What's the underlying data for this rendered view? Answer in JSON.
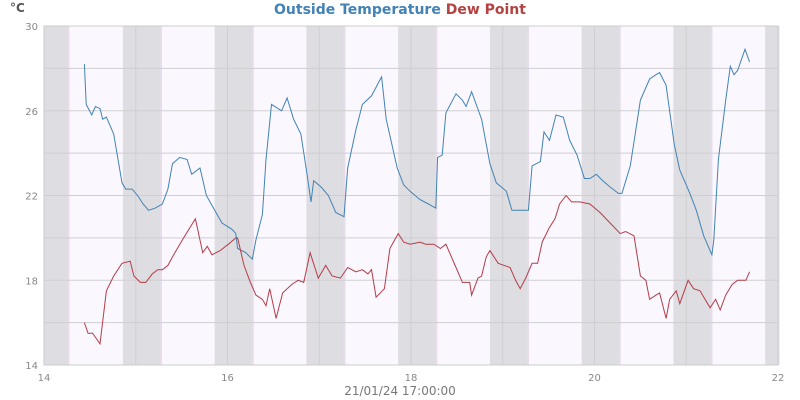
{
  "chart_data": {
    "type": "line",
    "title": "Outside Temperature Dew Point",
    "title_parts": [
      "Outside Temperature",
      "Dew Point"
    ],
    "ylabel": "°C",
    "xlabel": "21/01/24 17:00:00",
    "xlim": [
      14,
      22
    ],
    "ylim": [
      14,
      30
    ],
    "xticks": [
      14,
      16,
      18,
      20,
      22
    ],
    "yticks": [
      14,
      18,
      22,
      26,
      30
    ],
    "ygrid": [
      14,
      16,
      18,
      20,
      22,
      24,
      26,
      28,
      30
    ],
    "xgrid": [
      15,
      16,
      17,
      18,
      19,
      20,
      21
    ],
    "grid": true,
    "night_bands": [
      [
        14.0,
        14.26
      ],
      [
        14.86,
        15.27
      ],
      [
        15.86,
        16.27
      ],
      [
        16.86,
        17.27
      ],
      [
        17.86,
        18.27
      ],
      [
        18.86,
        19.27
      ],
      [
        19.86,
        20.27
      ],
      [
        20.86,
        21.27
      ],
      [
        21.86,
        22.0
      ]
    ],
    "series": [
      {
        "name": "Outside Temperature",
        "color": "#4282b4",
        "points": [
          [
            14.44,
            28.2
          ],
          [
            14.46,
            26.3
          ],
          [
            14.52,
            25.8
          ],
          [
            14.56,
            26.2
          ],
          [
            14.61,
            26.1
          ],
          [
            14.64,
            25.6
          ],
          [
            14.68,
            25.7
          ],
          [
            14.76,
            24.9
          ],
          [
            14.85,
            22.6
          ],
          [
            14.89,
            22.3
          ],
          [
            14.96,
            22.3
          ],
          [
            15.02,
            22.0
          ],
          [
            15.08,
            21.6
          ],
          [
            15.14,
            21.3
          ],
          [
            15.21,
            21.4
          ],
          [
            15.29,
            21.6
          ],
          [
            15.35,
            22.3
          ],
          [
            15.4,
            23.5
          ],
          [
            15.48,
            23.8
          ],
          [
            15.56,
            23.7
          ],
          [
            15.61,
            23.0
          ],
          [
            15.7,
            23.3
          ],
          [
            15.77,
            22.0
          ],
          [
            15.86,
            21.3
          ],
          [
            15.94,
            20.7
          ],
          [
            16.05,
            20.4
          ],
          [
            16.09,
            20.2
          ],
          [
            16.11,
            19.5
          ],
          [
            16.2,
            19.3
          ],
          [
            16.27,
            19.0
          ],
          [
            16.31,
            19.9
          ],
          [
            16.38,
            21.1
          ],
          [
            16.42,
            23.7
          ],
          [
            16.48,
            26.3
          ],
          [
            16.59,
            26.0
          ],
          [
            16.65,
            26.6
          ],
          [
            16.72,
            25.6
          ],
          [
            16.8,
            24.9
          ],
          [
            16.86,
            23.2
          ],
          [
            16.91,
            21.7
          ],
          [
            16.94,
            22.7
          ],
          [
            17.02,
            22.4
          ],
          [
            17.1,
            22.0
          ],
          [
            17.18,
            21.2
          ],
          [
            17.27,
            21.0
          ],
          [
            17.31,
            23.3
          ],
          [
            17.4,
            25.1
          ],
          [
            17.47,
            26.3
          ],
          [
            17.57,
            26.7
          ],
          [
            17.68,
            27.6
          ],
          [
            17.73,
            25.6
          ],
          [
            17.85,
            23.3
          ],
          [
            17.92,
            22.5
          ],
          [
            17.99,
            22.2
          ],
          [
            18.1,
            21.8
          ],
          [
            18.19,
            21.6
          ],
          [
            18.27,
            21.4
          ],
          [
            18.29,
            23.8
          ],
          [
            18.34,
            23.9
          ],
          [
            18.38,
            25.9
          ],
          [
            18.49,
            26.8
          ],
          [
            18.56,
            26.5
          ],
          [
            18.6,
            26.2
          ],
          [
            18.66,
            26.9
          ],
          [
            18.77,
            25.6
          ],
          [
            18.86,
            23.5
          ],
          [
            18.93,
            22.6
          ],
          [
            19.04,
            22.2
          ],
          [
            19.1,
            21.3
          ],
          [
            19.21,
            21.3
          ],
          [
            19.28,
            21.3
          ],
          [
            19.32,
            23.4
          ],
          [
            19.41,
            23.6
          ],
          [
            19.45,
            25.0
          ],
          [
            19.51,
            24.6
          ],
          [
            19.58,
            25.8
          ],
          [
            19.66,
            25.7
          ],
          [
            19.73,
            24.6
          ],
          [
            19.81,
            23.9
          ],
          [
            19.89,
            22.8
          ],
          [
            19.95,
            22.8
          ],
          [
            20.02,
            23.0
          ],
          [
            20.09,
            22.7
          ],
          [
            20.17,
            22.4
          ],
          [
            20.26,
            22.1
          ],
          [
            20.3,
            22.1
          ],
          [
            20.39,
            23.4
          ],
          [
            20.5,
            26.5
          ],
          [
            20.6,
            27.5
          ],
          [
            20.67,
            27.7
          ],
          [
            20.71,
            27.8
          ],
          [
            20.78,
            27.2
          ],
          [
            20.87,
            24.4
          ],
          [
            20.93,
            23.2
          ],
          [
            21.04,
            22.1
          ],
          [
            21.11,
            21.3
          ],
          [
            21.19,
            20.1
          ],
          [
            21.28,
            19.2
          ],
          [
            21.3,
            19.9
          ],
          [
            21.35,
            23.7
          ],
          [
            21.43,
            26.5
          ],
          [
            21.48,
            28.1
          ],
          [
            21.52,
            27.7
          ],
          [
            21.56,
            27.9
          ],
          [
            21.64,
            28.9
          ],
          [
            21.69,
            28.3
          ]
        ]
      },
      {
        "name": "Dew Point",
        "color": "#b43c46",
        "points": [
          [
            14.44,
            16.0
          ],
          [
            14.48,
            15.5
          ],
          [
            14.53,
            15.5
          ],
          [
            14.61,
            15.0
          ],
          [
            14.68,
            17.5
          ],
          [
            14.76,
            18.2
          ],
          [
            14.85,
            18.8
          ],
          [
            14.94,
            18.9
          ],
          [
            14.98,
            18.2
          ],
          [
            15.05,
            17.9
          ],
          [
            15.11,
            17.9
          ],
          [
            15.18,
            18.3
          ],
          [
            15.24,
            18.5
          ],
          [
            15.29,
            18.5
          ],
          [
            15.35,
            18.7
          ],
          [
            15.4,
            19.1
          ],
          [
            15.48,
            19.7
          ],
          [
            15.55,
            20.2
          ],
          [
            15.65,
            20.9
          ],
          [
            15.73,
            19.3
          ],
          [
            15.78,
            19.6
          ],
          [
            15.83,
            19.2
          ],
          [
            15.92,
            19.4
          ],
          [
            16.01,
            19.7
          ],
          [
            16.09,
            20.0
          ],
          [
            16.11,
            20.0
          ],
          [
            16.18,
            18.7
          ],
          [
            16.25,
            17.9
          ],
          [
            16.31,
            17.3
          ],
          [
            16.38,
            17.1
          ],
          [
            16.42,
            16.8
          ],
          [
            16.46,
            17.6
          ],
          [
            16.53,
            16.2
          ],
          [
            16.6,
            17.4
          ],
          [
            16.7,
            17.8
          ],
          [
            16.77,
            18.0
          ],
          [
            16.83,
            17.9
          ],
          [
            16.9,
            19.3
          ],
          [
            16.99,
            18.1
          ],
          [
            17.07,
            18.7
          ],
          [
            17.14,
            18.2
          ],
          [
            17.23,
            18.1
          ],
          [
            17.31,
            18.6
          ],
          [
            17.4,
            18.4
          ],
          [
            17.47,
            18.5
          ],
          [
            17.53,
            18.3
          ],
          [
            17.57,
            18.5
          ],
          [
            17.62,
            17.2
          ],
          [
            17.71,
            17.6
          ],
          [
            17.77,
            19.5
          ],
          [
            17.86,
            20.2
          ],
          [
            17.92,
            19.8
          ],
          [
            17.99,
            19.7
          ],
          [
            18.1,
            19.8
          ],
          [
            18.16,
            19.7
          ],
          [
            18.25,
            19.7
          ],
          [
            18.32,
            19.5
          ],
          [
            18.38,
            19.7
          ],
          [
            18.49,
            18.6
          ],
          [
            18.56,
            17.9
          ],
          [
            18.64,
            17.9
          ],
          [
            18.66,
            17.3
          ],
          [
            18.73,
            18.1
          ],
          [
            18.77,
            18.2
          ],
          [
            18.82,
            19.1
          ],
          [
            18.86,
            19.4
          ],
          [
            18.95,
            18.8
          ],
          [
            19.08,
            18.6
          ],
          [
            19.14,
            18.0
          ],
          [
            19.19,
            17.6
          ],
          [
            19.25,
            18.1
          ],
          [
            19.32,
            18.8
          ],
          [
            19.38,
            18.8
          ],
          [
            19.43,
            19.8
          ],
          [
            19.51,
            20.5
          ],
          [
            19.57,
            20.9
          ],
          [
            19.62,
            21.6
          ],
          [
            19.69,
            22.0
          ],
          [
            19.75,
            21.7
          ],
          [
            19.84,
            21.7
          ],
          [
            19.95,
            21.6
          ],
          [
            20.06,
            21.2
          ],
          [
            20.17,
            20.7
          ],
          [
            20.28,
            20.2
          ],
          [
            20.34,
            20.3
          ],
          [
            20.43,
            20.1
          ],
          [
            20.5,
            18.2
          ],
          [
            20.56,
            18.0
          ],
          [
            20.6,
            17.1
          ],
          [
            20.67,
            17.3
          ],
          [
            20.71,
            17.4
          ],
          [
            20.78,
            16.2
          ],
          [
            20.82,
            17.1
          ],
          [
            20.89,
            17.5
          ],
          [
            20.93,
            16.9
          ],
          [
            21.02,
            18.0
          ],
          [
            21.08,
            17.6
          ],
          [
            21.15,
            17.5
          ],
          [
            21.26,
            16.7
          ],
          [
            21.32,
            17.1
          ],
          [
            21.37,
            16.6
          ],
          [
            21.43,
            17.3
          ],
          [
            21.5,
            17.8
          ],
          [
            21.56,
            18.0
          ],
          [
            21.65,
            18.0
          ],
          [
            21.69,
            18.4
          ]
        ]
      }
    ]
  }
}
